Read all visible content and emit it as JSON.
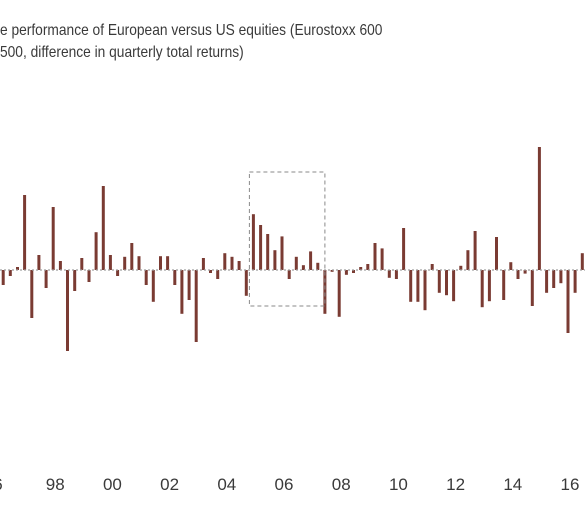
{
  "chart_data": {
    "type": "bar",
    "title_lines": [
      "e performance of European versus US equities (Eurostoxx 600",
      " 500, difference in quarterly total returns)"
    ],
    "xlabel": "",
    "ylabel": "",
    "x_tick_labels": [
      "6",
      "98",
      "00",
      "02",
      "04",
      "06",
      "08",
      "10",
      "12",
      "14",
      "16"
    ],
    "x_tick_positions": [
      1996,
      1998,
      2000,
      2002,
      2004,
      2006,
      2008,
      2010,
      2012,
      2014,
      2016
    ],
    "ylim": [
      -13,
      20
    ],
    "grid": false,
    "bar_color": "#7a3b33",
    "highlight_box": {
      "x_start": 2005.0,
      "x_end": 2007.5,
      "y_top": 14.0,
      "y_bottom": -6.0
    },
    "series": [
      {
        "values": [
          {
            "x": 1996.25,
            "y": -2.5
          },
          {
            "x": 1996.5,
            "y": -1.0
          },
          {
            "x": 1996.75,
            "y": 0.5
          },
          {
            "x": 1997.0,
            "y": 12.5
          },
          {
            "x": 1997.25,
            "y": -8.0
          },
          {
            "x": 1997.5,
            "y": 2.5
          },
          {
            "x": 1997.75,
            "y": -3.0
          },
          {
            "x": 1998.0,
            "y": 10.5
          },
          {
            "x": 1998.25,
            "y": 1.5
          },
          {
            "x": 1998.5,
            "y": -13.5
          },
          {
            "x": 1998.75,
            "y": -3.5
          },
          {
            "x": 1999.0,
            "y": 2.0
          },
          {
            "x": 1999.25,
            "y": -2.0
          },
          {
            "x": 1999.5,
            "y": 6.3
          },
          {
            "x": 1999.75,
            "y": 14.0
          },
          {
            "x": 2000.0,
            "y": 2.5
          },
          {
            "x": 2000.25,
            "y": -1.0
          },
          {
            "x": 2000.5,
            "y": 2.2
          },
          {
            "x": 2000.75,
            "y": 4.5
          },
          {
            "x": 2001.0,
            "y": 2.3
          },
          {
            "x": 2001.25,
            "y": -2.5
          },
          {
            "x": 2001.5,
            "y": -5.3
          },
          {
            "x": 2001.75,
            "y": 2.3
          },
          {
            "x": 2002.0,
            "y": 2.3
          },
          {
            "x": 2002.25,
            "y": -2.5
          },
          {
            "x": 2002.5,
            "y": -7.3
          },
          {
            "x": 2002.75,
            "y": -5.0
          },
          {
            "x": 2003.0,
            "y": -12.0
          },
          {
            "x": 2003.25,
            "y": 2.0
          },
          {
            "x": 2003.5,
            "y": -0.5
          },
          {
            "x": 2003.75,
            "y": -1.5
          },
          {
            "x": 2004.0,
            "y": 2.8
          },
          {
            "x": 2004.25,
            "y": 2.2
          },
          {
            "x": 2004.5,
            "y": 1.5
          },
          {
            "x": 2004.75,
            "y": -4.3
          },
          {
            "x": 2005.0,
            "y": 9.3
          },
          {
            "x": 2005.25,
            "y": 7.5
          },
          {
            "x": 2005.5,
            "y": 6.0
          },
          {
            "x": 2005.75,
            "y": 3.3
          },
          {
            "x": 2006.0,
            "y": 5.6
          },
          {
            "x": 2006.25,
            "y": -1.5
          },
          {
            "x": 2006.5,
            "y": 2.2
          },
          {
            "x": 2006.75,
            "y": 0.8
          },
          {
            "x": 2007.0,
            "y": 3.1
          },
          {
            "x": 2007.25,
            "y": 1.2
          },
          {
            "x": 2007.5,
            "y": -7.3
          },
          {
            "x": 2007.75,
            "y": -0.3
          },
          {
            "x": 2008.0,
            "y": -7.8
          },
          {
            "x": 2008.25,
            "y": -0.8
          },
          {
            "x": 2008.5,
            "y": -0.5
          },
          {
            "x": 2008.75,
            "y": 0.5
          },
          {
            "x": 2009.0,
            "y": 1.0
          },
          {
            "x": 2009.25,
            "y": 4.5
          },
          {
            "x": 2009.5,
            "y": 3.6
          },
          {
            "x": 2009.75,
            "y": -1.3
          },
          {
            "x": 2010.0,
            "y": -1.5
          },
          {
            "x": 2010.25,
            "y": 7.0
          },
          {
            "x": 2010.5,
            "y": -5.3
          },
          {
            "x": 2010.75,
            "y": -5.3
          },
          {
            "x": 2011.0,
            "y": -6.7
          },
          {
            "x": 2011.25,
            "y": 1.0
          },
          {
            "x": 2011.5,
            "y": -3.8
          },
          {
            "x": 2011.75,
            "y": -4.2
          },
          {
            "x": 2012.0,
            "y": -5.2
          },
          {
            "x": 2012.25,
            "y": 0.7
          },
          {
            "x": 2012.5,
            "y": 3.3
          },
          {
            "x": 2012.75,
            "y": 6.5
          },
          {
            "x": 2013.0,
            "y": -6.2
          },
          {
            "x": 2013.25,
            "y": -5.2
          },
          {
            "x": 2013.5,
            "y": 5.5
          },
          {
            "x": 2013.75,
            "y": -5.0
          },
          {
            "x": 2014.0,
            "y": 1.3
          },
          {
            "x": 2014.25,
            "y": -1.5
          },
          {
            "x": 2014.5,
            "y": -0.6
          },
          {
            "x": 2014.75,
            "y": -6.0
          },
          {
            "x": 2015.0,
            "y": 20.5
          },
          {
            "x": 2015.25,
            "y": -3.8
          },
          {
            "x": 2015.5,
            "y": -3.0
          },
          {
            "x": 2015.75,
            "y": -2.2
          },
          {
            "x": 2016.0,
            "y": -10.5
          },
          {
            "x": 2016.25,
            "y": -3.8
          },
          {
            "x": 2016.5,
            "y": 2.8
          }
        ]
      }
    ]
  }
}
